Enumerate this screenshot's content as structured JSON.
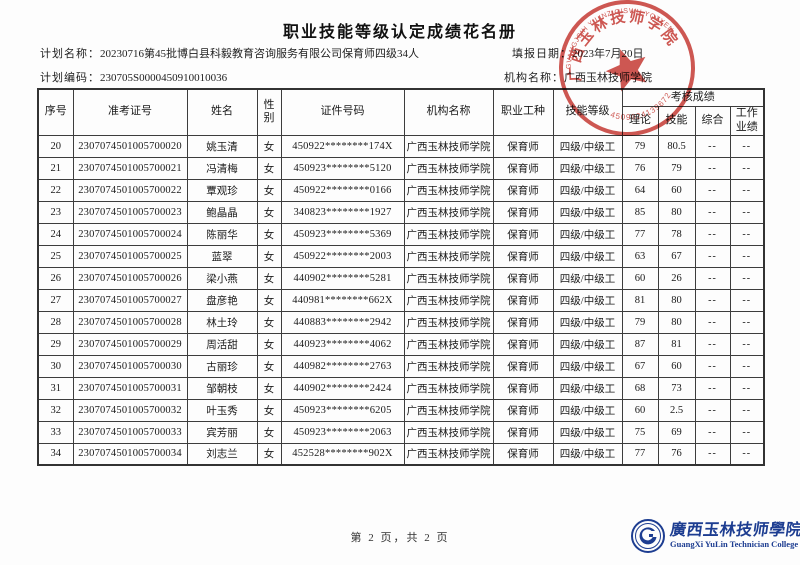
{
  "title": "职业技能等级认定成绩花名册",
  "meta": {
    "plan_name_label": "计划名称：",
    "plan_name": "20230716第45批博白县科毅教育咨询服务有限公司保育师四级34人",
    "plan_code_label": "计划编码：",
    "plan_code": "230705S0000450910010036",
    "fill_date_label": "填报日期：",
    "fill_date": "2023年7月20日",
    "org_label": "机构名称：",
    "org_name": "广西玉林技师学院"
  },
  "table": {
    "headers": {
      "seq": "序号",
      "ticket": "准考证号",
      "name": "姓名",
      "gender": "性别",
      "id": "证件号码",
      "org": "机构名称",
      "occupation": "职业工种",
      "level": "技能等级",
      "score_group": "考核成绩",
      "theory": "理论",
      "skill": "技能",
      "comprehensive": "综合",
      "work": "工作业绩"
    },
    "rows": [
      {
        "seq": "20",
        "ticket": "2307074501005700020",
        "name": "姚玉清",
        "gender": "女",
        "id": "450922********174X",
        "org": "广西玉林技师学院",
        "occupation": "保育师",
        "level": "四级/中级工",
        "theory": "79",
        "skill": "80.5",
        "comprehensive": "--",
        "work": "--"
      },
      {
        "seq": "21",
        "ticket": "2307074501005700021",
        "name": "冯清梅",
        "gender": "女",
        "id": "450923********5120",
        "org": "广西玉林技师学院",
        "occupation": "保育师",
        "level": "四级/中级工",
        "theory": "76",
        "skill": "79",
        "comprehensive": "--",
        "work": "--"
      },
      {
        "seq": "22",
        "ticket": "2307074501005700022",
        "name": "覃观珍",
        "gender": "女",
        "id": "450922********0166",
        "org": "广西玉林技师学院",
        "occupation": "保育师",
        "level": "四级/中级工",
        "theory": "64",
        "skill": "60",
        "comprehensive": "--",
        "work": "--"
      },
      {
        "seq": "23",
        "ticket": "2307074501005700023",
        "name": "鲍晶晶",
        "gender": "女",
        "id": "340823********1927",
        "org": "广西玉林技师学院",
        "occupation": "保育师",
        "level": "四级/中级工",
        "theory": "85",
        "skill": "80",
        "comprehensive": "--",
        "work": "--"
      },
      {
        "seq": "24",
        "ticket": "2307074501005700024",
        "name": "陈丽华",
        "gender": "女",
        "id": "450923********5369",
        "org": "广西玉林技师学院",
        "occupation": "保育师",
        "level": "四级/中级工",
        "theory": "77",
        "skill": "78",
        "comprehensive": "--",
        "work": "--"
      },
      {
        "seq": "25",
        "ticket": "2307074501005700025",
        "name": "蓝翠",
        "gender": "女",
        "id": "450922********2003",
        "org": "广西玉林技师学院",
        "occupation": "保育师",
        "level": "四级/中级工",
        "theory": "63",
        "skill": "67",
        "comprehensive": "--",
        "work": "--"
      },
      {
        "seq": "26",
        "ticket": "2307074501005700026",
        "name": "梁小燕",
        "gender": "女",
        "id": "440902********5281",
        "org": "广西玉林技师学院",
        "occupation": "保育师",
        "level": "四级/中级工",
        "theory": "60",
        "skill": "26",
        "comprehensive": "--",
        "work": "--"
      },
      {
        "seq": "27",
        "ticket": "2307074501005700027",
        "name": "盘彦艳",
        "gender": "女",
        "id": "440981********662X",
        "org": "广西玉林技师学院",
        "occupation": "保育师",
        "level": "四级/中级工",
        "theory": "81",
        "skill": "80",
        "comprehensive": "--",
        "work": "--"
      },
      {
        "seq": "28",
        "ticket": "2307074501005700028",
        "name": "林土玲",
        "gender": "女",
        "id": "440883********2942",
        "org": "广西玉林技师学院",
        "occupation": "保育师",
        "level": "四级/中级工",
        "theory": "79",
        "skill": "80",
        "comprehensive": "--",
        "work": "--"
      },
      {
        "seq": "29",
        "ticket": "2307074501005700029",
        "name": "周活甜",
        "gender": "女",
        "id": "440923********4062",
        "org": "广西玉林技师学院",
        "occupation": "保育师",
        "level": "四级/中级工",
        "theory": "87",
        "skill": "81",
        "comprehensive": "--",
        "work": "--"
      },
      {
        "seq": "30",
        "ticket": "2307074501005700030",
        "name": "古丽珍",
        "gender": "女",
        "id": "440982********2763",
        "org": "广西玉林技师学院",
        "occupation": "保育师",
        "level": "四级/中级工",
        "theory": "67",
        "skill": "60",
        "comprehensive": "--",
        "work": "--"
      },
      {
        "seq": "31",
        "ticket": "2307074501005700031",
        "name": "邹朝枝",
        "gender": "女",
        "id": "440902********2424",
        "org": "广西玉林技师学院",
        "occupation": "保育师",
        "level": "四级/中级工",
        "theory": "68",
        "skill": "73",
        "comprehensive": "--",
        "work": "--"
      },
      {
        "seq": "32",
        "ticket": "2307074501005700032",
        "name": "叶玉秀",
        "gender": "女",
        "id": "450923********6205",
        "org": "广西玉林技师学院",
        "occupation": "保育师",
        "level": "四级/中级工",
        "theory": "60",
        "skill": "2.5",
        "comprehensive": "--",
        "work": "--"
      },
      {
        "seq": "33",
        "ticket": "2307074501005700033",
        "name": "宾芳丽",
        "gender": "女",
        "id": "450923********2063",
        "org": "广西玉林技师学院",
        "occupation": "保育师",
        "level": "四级/中级工",
        "theory": "75",
        "skill": "69",
        "comprehensive": "--",
        "work": "--"
      },
      {
        "seq": "34",
        "ticket": "2307074501005700034",
        "name": "刘志兰",
        "gender": "女",
        "id": "452528********902X",
        "org": "广西玉林技师学院",
        "occupation": "保育师",
        "level": "四级/中级工",
        "theory": "77",
        "skill": "76",
        "comprehensive": "--",
        "work": "--"
      }
    ]
  },
  "footer": {
    "page_text": "第 2 页，共 2 页"
  },
  "stamp": {
    "org_text": "广西玉林技师学院",
    "zhuang_text": "GVANGJSIH YILINZ GISWH YOZYEN",
    "serial_number": "4509024139672",
    "color": "#c5332c"
  },
  "logo": {
    "cn_text": "廣西玉林技师學院",
    "en_text": "GuangXi YuLin Technician College",
    "color": "#1d3d91"
  }
}
